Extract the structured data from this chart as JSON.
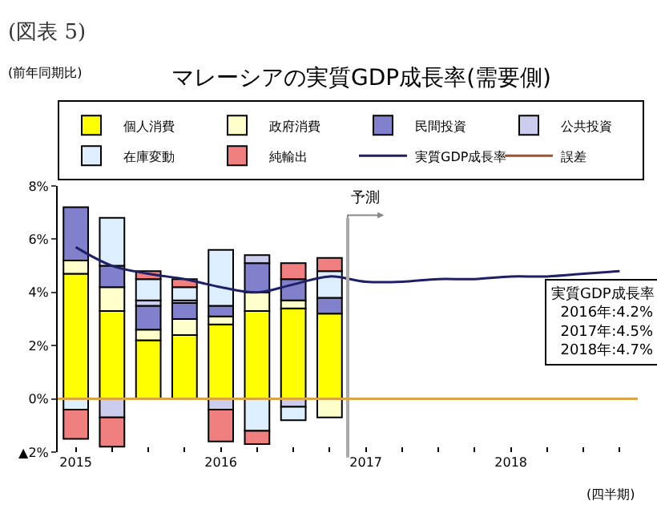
{
  "chart_data": {
    "type": "bar",
    "stacked": true,
    "title": "マレーシアの実質GDP成長率(需要側)",
    "xlabel": "(四半期)",
    "annotations": [
      "(図表 5)",
      "(前年同期比)",
      "実質GDP成長率\n2016年:4.2%\n2017年:4.5%\n2018年:4.7%"
    ],
    "categories": [
      "2015",
      null,
      null,
      null,
      "2016",
      null,
      null,
      null,
      "2017",
      null,
      null,
      null,
      "2018",
      null,
      null,
      null
    ],
    "series": [
      {
        "name": "個人消費",
        "color": "#ffff00",
        "values": [
          4.7,
          3.3,
          2.2,
          2.4,
          2.8,
          3.3,
          3.4,
          3.2,
          null,
          null,
          null,
          null,
          null,
          null,
          null,
          null
        ]
      },
      {
        "name": "政府消費",
        "color": "#ffffcc",
        "values": [
          0.5,
          0.9,
          0.4,
          0.6,
          0.3,
          0.7,
          0.3,
          -0.7,
          null,
          null,
          null,
          null,
          null,
          null,
          null,
          null
        ]
      },
      {
        "name": "民間投資",
        "color": "#8080cc",
        "values": [
          2.0,
          0.8,
          0.9,
          0.6,
          0.4,
          1.1,
          0.8,
          0.6,
          null,
          null,
          null,
          null,
          null,
          null,
          null,
          null
        ]
      },
      {
        "name": "公共投資",
        "color": "#ccccee",
        "values": [
          null,
          -0.7,
          0.2,
          0.1,
          -0.4,
          0.3,
          -0.3,
          null,
          null,
          null,
          null,
          null,
          null,
          null,
          null,
          null
        ]
      },
      {
        "name": "在庫変動",
        "color": "#ddeeff",
        "values": [
          -0.4,
          1.8,
          0.8,
          0.5,
          2.1,
          -1.2,
          -0.5,
          1.0,
          null,
          null,
          null,
          null,
          null,
          null,
          null,
          null
        ]
      },
      {
        "name": "純輸出",
        "color": "#f08080",
        "values": [
          -1.1,
          -1.1,
          0.3,
          0.3,
          -1.2,
          -0.5,
          0.6,
          0.5,
          null,
          null,
          null,
          null,
          null,
          null,
          null,
          null
        ]
      },
      {
        "name": "実質GDP成長率",
        "type": "line",
        "color": "#1f1f66",
        "values": [
          5.7,
          5.0,
          4.7,
          4.5,
          4.2,
          4.0,
          4.3,
          4.6,
          4.4,
          4.4,
          4.5,
          4.5,
          4.6,
          4.6,
          4.7,
          4.8
        ]
      },
      {
        "name": "誤差",
        "type": "line",
        "color": "#a0522d",
        "values": [
          null,
          null,
          null,
          null,
          null,
          null,
          null,
          null,
          null,
          null,
          null,
          null,
          null,
          null,
          null,
          null
        ]
      }
    ],
    "ylim": [
      -2,
      8
    ],
    "yticks": [
      {
        "value": -2,
        "label": "▲2%"
      },
      {
        "value": 0,
        "label": "0%"
      },
      {
        "value": 2,
        "label": "2%"
      },
      {
        "value": 4,
        "label": "4%"
      },
      {
        "value": 6,
        "label": "6%"
      },
      {
        "value": 8,
        "label": "8%"
      }
    ],
    "ref_lines": [
      {
        "axis": "x",
        "value": "2017",
        "label": "予測",
        "color": "#aaaaaa"
      },
      {
        "axis": "y",
        "value": 0,
        "color": "#d9a441"
      }
    ],
    "grid": false,
    "legend": "top"
  }
}
